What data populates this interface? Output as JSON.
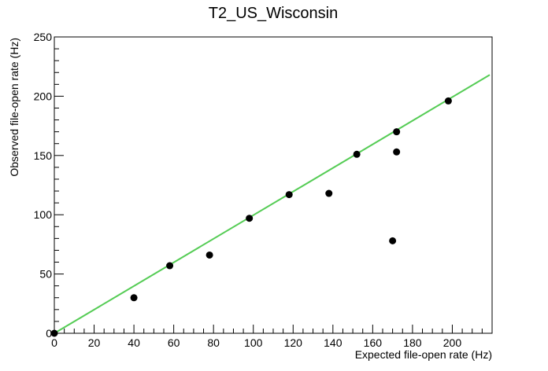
{
  "chart_data": {
    "type": "scatter",
    "title": "T2_US_Wisconsin",
    "xlabel": "Expected file-open rate (Hz)",
    "ylabel": "Observed file-open rate (Hz)",
    "xlim": [
      0,
      220
    ],
    "ylim": [
      0,
      250
    ],
    "x_ticks": [
      0,
      20,
      40,
      60,
      80,
      100,
      120,
      140,
      160,
      180,
      200
    ],
    "y_ticks": [
      0,
      50,
      100,
      150,
      200,
      250
    ],
    "grid": false,
    "points": [
      {
        "x": 0,
        "y": 0
      },
      {
        "x": 40,
        "y": 30
      },
      {
        "x": 58,
        "y": 57
      },
      {
        "x": 78,
        "y": 66
      },
      {
        "x": 98,
        "y": 97
      },
      {
        "x": 118,
        "y": 117
      },
      {
        "x": 138,
        "y": 118
      },
      {
        "x": 152,
        "y": 151
      },
      {
        "x": 170,
        "y": 78
      },
      {
        "x": 172,
        "y": 153
      },
      {
        "x": 172,
        "y": 170
      },
      {
        "x": 198,
        "y": 196
      }
    ],
    "fit_line": {
      "x": [
        0,
        220
      ],
      "y": [
        0,
        218
      ],
      "color": "#55cc55"
    },
    "marker_color": "#000000"
  }
}
